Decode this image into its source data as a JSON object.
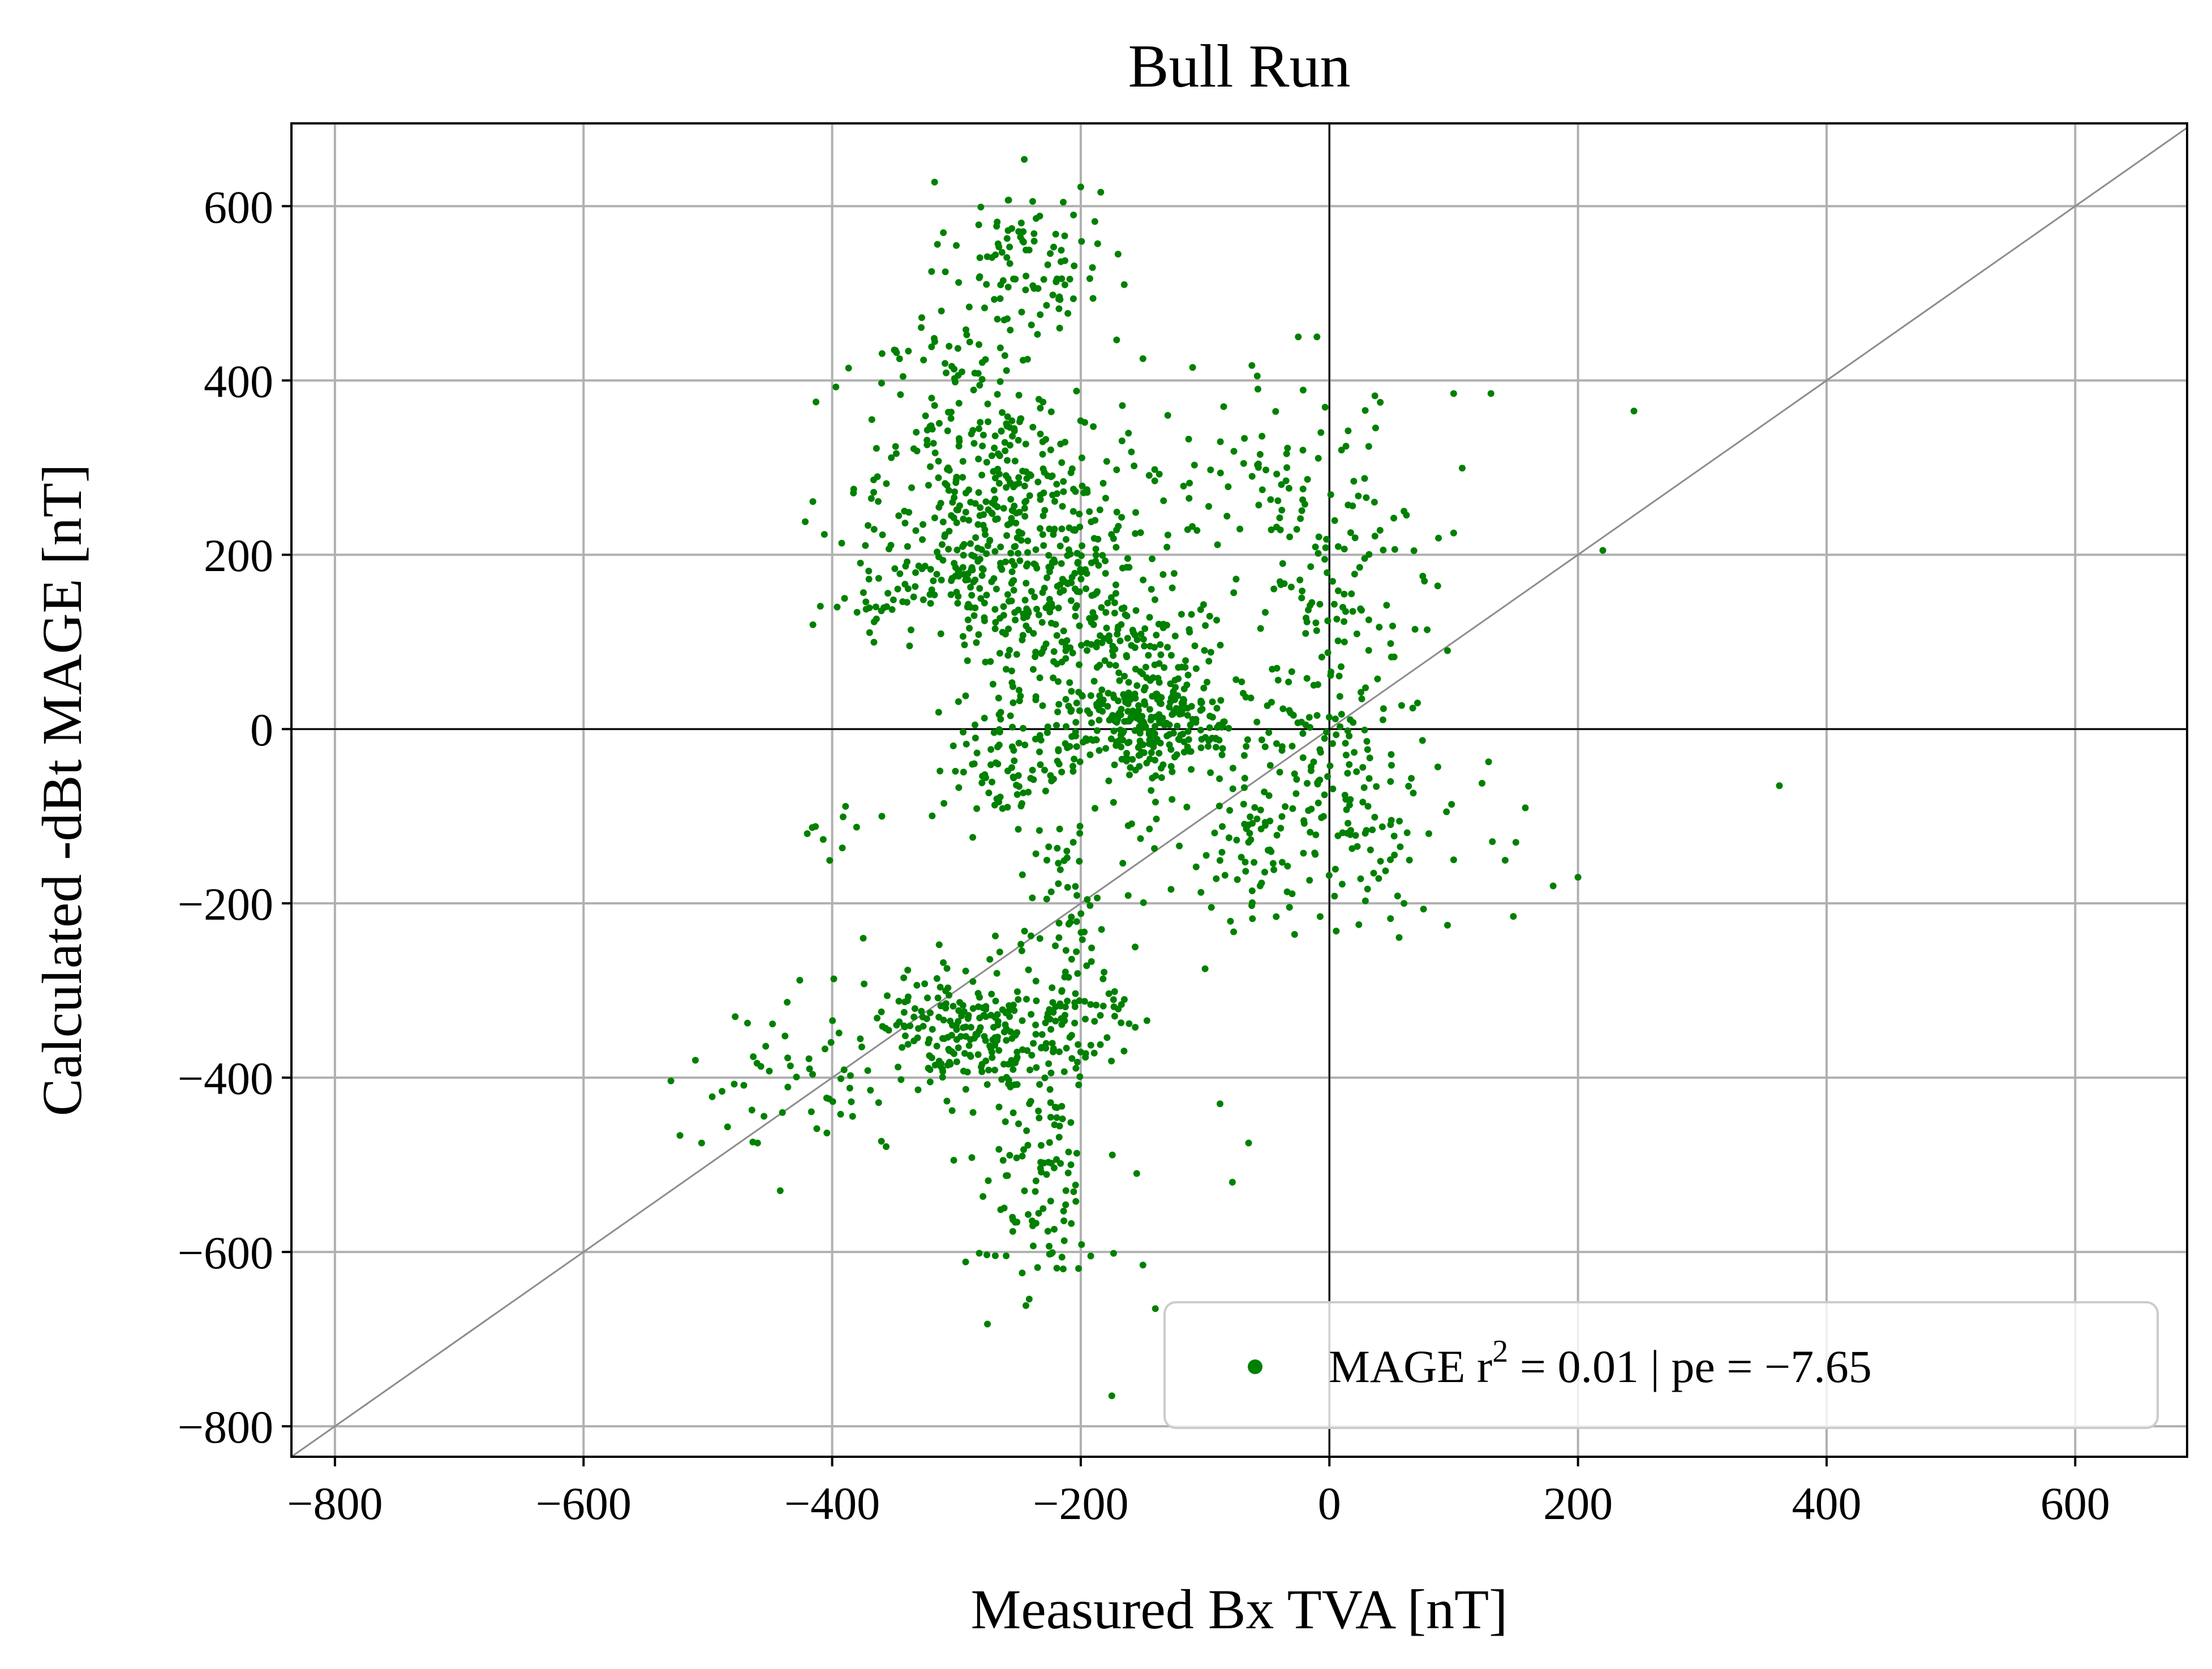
{
  "chart_data": {
    "type": "scatter",
    "title": "Bull Run",
    "xlabel": "Measured Bx TVA [nT]",
    "ylabel": "Calculated -dBt MAGE [nT]",
    "xlim": [
      -835,
      690
    ],
    "ylim": [
      -835,
      695
    ],
    "x_ticks": [
      -800,
      -600,
      -400,
      -200,
      0,
      200,
      400,
      600
    ],
    "y_ticks": [
      -800,
      -600,
      -400,
      -200,
      0,
      200,
      400,
      600
    ],
    "x_tick_labels": [
      "−800",
      "−600",
      "−400",
      "−200",
      "0",
      "200",
      "400",
      "600"
    ],
    "y_tick_labels": [
      "−800",
      "−600",
      "−400",
      "−200",
      "0",
      "200",
      "400",
      "600"
    ],
    "grid": true,
    "reference_lines": [
      "x=0",
      "y=0",
      "y=x"
    ],
    "legend": {
      "placement": "lower-right",
      "label_text": "MAGE r",
      "label_sup": "2",
      "label_rest": " = 0.01 | pe = −7.65"
    },
    "series": [
      {
        "label": "MAGE r² = 0.01 | pe = −7.65",
        "color": "#008000",
        "clusters": [
          {
            "center": [
              -245,
              540
            ],
            "spread": [
              30,
              45
            ],
            "count": 90
          },
          {
            "center": [
              -300,
              400
            ],
            "spread": [
              40,
              60
            ],
            "count": 90
          },
          {
            "center": [
              -255,
              280
            ],
            "spread": [
              45,
              55
            ],
            "count": 190
          },
          {
            "center": [
              -300,
              190
            ],
            "spread": [
              45,
              45
            ],
            "count": 130
          },
          {
            "center": [
              -220,
              150
            ],
            "spread": [
              45,
              60
            ],
            "count": 190
          },
          {
            "center": [
              -165,
              120
            ],
            "spread": [
              40,
              50
            ],
            "count": 130
          },
          {
            "center": [
              -140,
              0
            ],
            "spread": [
              35,
              30
            ],
            "count": 230
          },
          {
            "center": [
              -185,
              0
            ],
            "spread": [
              45,
              40
            ],
            "count": 90
          },
          {
            "center": [
              -270,
              -40
            ],
            "spread": [
              20,
              35
            ],
            "count": 60
          },
          {
            "center": [
              -50,
              300
            ],
            "spread": [
              60,
              45
            ],
            "count": 70
          },
          {
            "center": [
              10,
              150
            ],
            "spread": [
              40,
              70
            ],
            "count": 100
          },
          {
            "center": [
              -10,
              0
            ],
            "spread": [
              30,
              40
            ],
            "count": 60
          },
          {
            "center": [
              20,
              -110
            ],
            "spread": [
              45,
              50
            ],
            "count": 110
          },
          {
            "center": [
              -70,
              -140
            ],
            "spread": [
              35,
              45
            ],
            "count": 60
          },
          {
            "center": [
              -215,
              -210
            ],
            "spread": [
              20,
              60
            ],
            "count": 60
          },
          {
            "center": [
              -290,
              -350
            ],
            "spread": [
              40,
              40
            ],
            "count": 220
          },
          {
            "center": [
              -200,
              -340
            ],
            "spread": [
              30,
              40
            ],
            "count": 60
          },
          {
            "center": [
              -240,
              -520
            ],
            "spread": [
              25,
              70
            ],
            "count": 110
          },
          {
            "center": [
              -420,
              -400
            ],
            "spread": [
              45,
              40
            ],
            "count": 50
          },
          {
            "center": [
              -370,
              140
            ],
            "spread": [
              15,
              20
            ],
            "count": 15
          },
          {
            "center": [
              -400,
              -130
            ],
            "spread": [
              12,
              20
            ],
            "count": 8
          }
        ],
        "points": [
          [
            -200,
            622
          ],
          [
            -258,
            607
          ],
          [
            -320,
            525
          ],
          [
            -350,
            435
          ],
          [
            -390,
            150
          ],
          [
            -396,
            140
          ],
          [
            -360,
            -100
          ],
          [
            -375,
            -240
          ],
          [
            -420,
            -120
          ],
          [
            -510,
            -380
          ],
          [
            -505,
            -475
          ],
          [
            -478,
            -330
          ],
          [
            -460,
            -475
          ],
          [
            -440,
            -440
          ],
          [
            -175,
            -765
          ],
          [
            -140,
            -665
          ],
          [
            -100,
            -275
          ],
          [
            -88,
            -430
          ],
          [
            -65,
            -475
          ],
          [
            -78,
            -520
          ],
          [
            -150,
            -615
          ],
          [
            -155,
            -510
          ],
          [
            -25,
            450
          ],
          [
            -10,
            450
          ],
          [
            100,
            385
          ],
          [
            130,
            385
          ],
          [
            245,
            365
          ],
          [
            220,
            205
          ],
          [
            100,
            225
          ],
          [
            95,
            90
          ],
          [
            60,
            250
          ],
          [
            60,
            -200
          ],
          [
            95,
            -225
          ],
          [
            100,
            -150
          ],
          [
            150,
            -130
          ],
          [
            148,
            -215
          ],
          [
            180,
            -180
          ],
          [
            200,
            -170
          ],
          [
            362,
            -65
          ],
          [
            80,
            -120
          ],
          [
            -150,
            425
          ],
          [
            -110,
            415
          ],
          [
            -130,
            360
          ],
          [
            -85,
            370
          ],
          [
            -170,
            545
          ],
          [
            -165,
            510
          ]
        ]
      }
    ]
  }
}
